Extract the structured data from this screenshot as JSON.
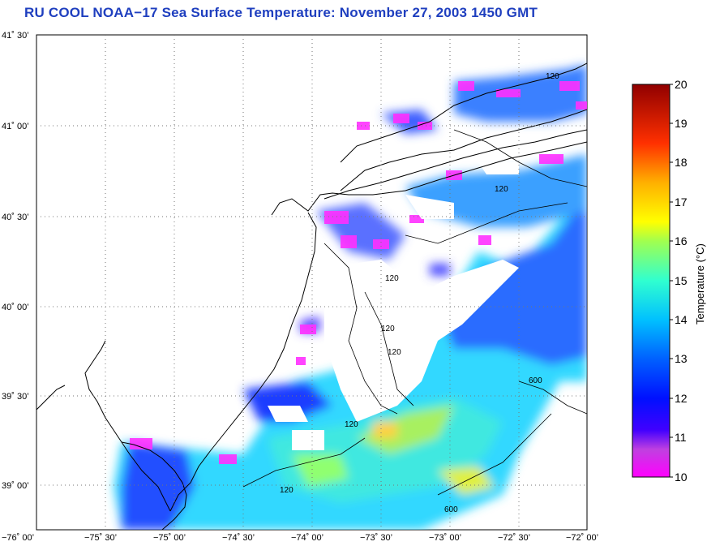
{
  "title": "RU COOL  NOAA−17  Sea Surface Temperature:  November 27, 2003 1450 GMT",
  "map": {
    "lat_labels": [
      "41˚ 30’",
      "41˚ 00’",
      "40˚ 30’",
      "40˚ 00’",
      "39˚ 30’",
      "39˚ 00’"
    ],
    "lon_labels": [
      "−76˚ 00’",
      "−75˚ 30’",
      "−75˚ 00’",
      "−74˚ 30’",
      "−74˚ 00’",
      "−73˚ 30’",
      "−73˚ 00’",
      "−72˚ 30’",
      "−72˚ 00’"
    ],
    "contour_labels": [
      "120",
      "120",
      "120",
      "120",
      "120",
      "120",
      "120",
      "600",
      "600"
    ]
  },
  "colorbar": {
    "label": "Temperature (°C)",
    "ticks": [
      "20",
      "19",
      "18",
      "17",
      "16",
      "15",
      "14",
      "13",
      "12",
      "11",
      "10"
    ],
    "range": [
      10,
      20
    ],
    "colors": [
      "#ff00ff",
      "#8000c0",
      "#0000ff",
      "#0080ff",
      "#00d0ff",
      "#40ffd0",
      "#a0ff60",
      "#ffff00",
      "#ffa000",
      "#ff2000",
      "#a00000"
    ]
  }
}
